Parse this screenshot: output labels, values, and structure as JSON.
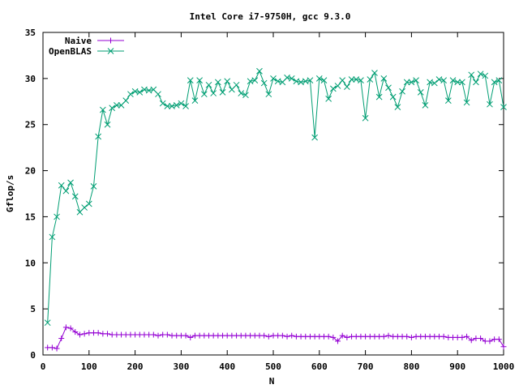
{
  "chart_data": {
    "type": "line",
    "title": "Intel Core i7-9750H, gcc 9.3.0",
    "xlabel": "N",
    "ylabel": "Gflop/s",
    "xlim": [
      0,
      1000
    ],
    "ylim": [
      0,
      35
    ],
    "xticks": [
      0,
      100,
      200,
      300,
      400,
      500,
      600,
      700,
      800,
      900,
      1000
    ],
    "yticks": [
      0,
      5,
      10,
      15,
      20,
      25,
      30,
      35
    ],
    "grid": false,
    "legend_position": "top-left",
    "series": [
      {
        "name": "Naive",
        "color": "#9400d3",
        "marker": "plus",
        "points": [
          [
            10,
            0.8
          ],
          [
            20,
            0.8
          ],
          [
            30,
            0.7
          ],
          [
            40,
            1.8
          ],
          [
            50,
            3.0
          ],
          [
            60,
            2.9
          ],
          [
            70,
            2.5
          ],
          [
            80,
            2.2
          ],
          [
            90,
            2.3
          ],
          [
            100,
            2.4
          ],
          [
            110,
            2.4
          ],
          [
            120,
            2.4
          ],
          [
            130,
            2.3
          ],
          [
            140,
            2.3
          ],
          [
            150,
            2.2
          ],
          [
            160,
            2.2
          ],
          [
            170,
            2.2
          ],
          [
            180,
            2.2
          ],
          [
            190,
            2.2
          ],
          [
            200,
            2.2
          ],
          [
            210,
            2.2
          ],
          [
            220,
            2.2
          ],
          [
            230,
            2.2
          ],
          [
            240,
            2.2
          ],
          [
            250,
            2.1
          ],
          [
            260,
            2.2
          ],
          [
            270,
            2.2
          ],
          [
            280,
            2.1
          ],
          [
            290,
            2.1
          ],
          [
            300,
            2.1
          ],
          [
            310,
            2.1
          ],
          [
            320,
            1.9
          ],
          [
            330,
            2.1
          ],
          [
            340,
            2.1
          ],
          [
            350,
            2.1
          ],
          [
            360,
            2.1
          ],
          [
            370,
            2.1
          ],
          [
            380,
            2.1
          ],
          [
            390,
            2.1
          ],
          [
            400,
            2.1
          ],
          [
            410,
            2.1
          ],
          [
            420,
            2.1
          ],
          [
            430,
            2.1
          ],
          [
            440,
            2.1
          ],
          [
            450,
            2.1
          ],
          [
            460,
            2.1
          ],
          [
            470,
            2.1
          ],
          [
            480,
            2.1
          ],
          [
            490,
            2.0
          ],
          [
            500,
            2.1
          ],
          [
            510,
            2.1
          ],
          [
            520,
            2.1
          ],
          [
            530,
            2.0
          ],
          [
            540,
            2.1
          ],
          [
            550,
            2.0
          ],
          [
            560,
            2.0
          ],
          [
            570,
            2.0
          ],
          [
            580,
            2.0
          ],
          [
            590,
            2.0
          ],
          [
            600,
            2.0
          ],
          [
            610,
            2.0
          ],
          [
            620,
            2.0
          ],
          [
            630,
            1.9
          ],
          [
            640,
            1.5
          ],
          [
            650,
            2.1
          ],
          [
            660,
            1.9
          ],
          [
            670,
            2.0
          ],
          [
            680,
            2.0
          ],
          [
            690,
            2.0
          ],
          [
            700,
            2.0
          ],
          [
            710,
            2.0
          ],
          [
            720,
            2.0
          ],
          [
            730,
            2.0
          ],
          [
            740,
            2.0
          ],
          [
            750,
            2.1
          ],
          [
            760,
            2.0
          ],
          [
            770,
            2.0
          ],
          [
            780,
            2.0
          ],
          [
            790,
            2.0
          ],
          [
            800,
            1.9
          ],
          [
            810,
            2.0
          ],
          [
            820,
            2.0
          ],
          [
            830,
            2.0
          ],
          [
            840,
            2.0
          ],
          [
            850,
            2.0
          ],
          [
            860,
            2.0
          ],
          [
            870,
            2.0
          ],
          [
            880,
            1.9
          ],
          [
            890,
            1.9
          ],
          [
            900,
            1.9
          ],
          [
            910,
            1.9
          ],
          [
            920,
            2.0
          ],
          [
            930,
            1.6
          ],
          [
            940,
            1.8
          ],
          [
            950,
            1.8
          ],
          [
            960,
            1.5
          ],
          [
            970,
            1.5
          ],
          [
            980,
            1.7
          ],
          [
            990,
            1.7
          ],
          [
            1000,
            0.9
          ]
        ]
      },
      {
        "name": "OpenBLAS",
        "color": "#009e73",
        "marker": "cross",
        "points": [
          [
            10,
            3.5
          ],
          [
            20,
            12.8
          ],
          [
            30,
            15.0
          ],
          [
            40,
            18.4
          ],
          [
            50,
            17.8
          ],
          [
            60,
            18.7
          ],
          [
            70,
            17.2
          ],
          [
            80,
            15.5
          ],
          [
            90,
            16.0
          ],
          [
            100,
            16.4
          ],
          [
            110,
            18.3
          ],
          [
            120,
            23.7
          ],
          [
            130,
            26.6
          ],
          [
            140,
            25.0
          ],
          [
            150,
            26.8
          ],
          [
            160,
            27.1
          ],
          [
            170,
            27.1
          ],
          [
            180,
            27.6
          ],
          [
            190,
            28.3
          ],
          [
            200,
            28.6
          ],
          [
            210,
            28.5
          ],
          [
            220,
            28.8
          ],
          [
            230,
            28.7
          ],
          [
            240,
            28.8
          ],
          [
            250,
            28.3
          ],
          [
            260,
            27.3
          ],
          [
            270,
            27.0
          ],
          [
            280,
            27.0
          ],
          [
            290,
            27.1
          ],
          [
            300,
            27.3
          ],
          [
            310,
            27.0
          ],
          [
            320,
            29.8
          ],
          [
            330,
            27.6
          ],
          [
            340,
            29.8
          ],
          [
            350,
            28.3
          ],
          [
            360,
            29.3
          ],
          [
            370,
            28.4
          ],
          [
            380,
            29.6
          ],
          [
            390,
            28.5
          ],
          [
            400,
            29.7
          ],
          [
            410,
            28.8
          ],
          [
            420,
            29.3
          ],
          [
            430,
            28.4
          ],
          [
            440,
            28.2
          ],
          [
            450,
            29.7
          ],
          [
            460,
            29.8
          ],
          [
            470,
            30.8
          ],
          [
            480,
            29.5
          ],
          [
            490,
            28.3
          ],
          [
            500,
            30.0
          ],
          [
            510,
            29.7
          ],
          [
            520,
            29.6
          ],
          [
            530,
            30.1
          ],
          [
            540,
            30.0
          ],
          [
            550,
            29.7
          ],
          [
            560,
            29.6
          ],
          [
            570,
            29.7
          ],
          [
            580,
            29.8
          ],
          [
            590,
            23.6
          ],
          [
            600,
            30.0
          ],
          [
            610,
            29.8
          ],
          [
            620,
            27.8
          ],
          [
            630,
            28.9
          ],
          [
            640,
            29.2
          ],
          [
            650,
            29.8
          ],
          [
            660,
            29.1
          ],
          [
            670,
            29.9
          ],
          [
            680,
            29.9
          ],
          [
            690,
            29.8
          ],
          [
            700,
            25.7
          ],
          [
            710,
            29.9
          ],
          [
            720,
            30.6
          ],
          [
            730,
            28.0
          ],
          [
            740,
            30.0
          ],
          [
            750,
            29.0
          ],
          [
            760,
            28.0
          ],
          [
            770,
            26.9
          ],
          [
            780,
            28.6
          ],
          [
            790,
            29.6
          ],
          [
            800,
            29.6
          ],
          [
            810,
            29.8
          ],
          [
            820,
            28.5
          ],
          [
            830,
            27.1
          ],
          [
            840,
            29.6
          ],
          [
            850,
            29.5
          ],
          [
            860,
            29.9
          ],
          [
            870,
            29.8
          ],
          [
            880,
            27.6
          ],
          [
            890,
            29.8
          ],
          [
            900,
            29.6
          ],
          [
            910,
            29.6
          ],
          [
            920,
            27.4
          ],
          [
            930,
            30.4
          ],
          [
            940,
            29.6
          ],
          [
            950,
            30.5
          ],
          [
            960,
            30.3
          ],
          [
            970,
            27.2
          ],
          [
            980,
            29.6
          ],
          [
            990,
            29.8
          ],
          [
            1000,
            26.9
          ]
        ]
      }
    ]
  }
}
